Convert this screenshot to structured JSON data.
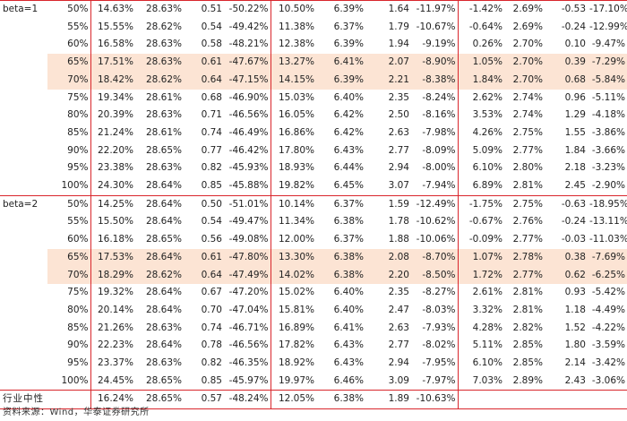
{
  "groups": [
    {
      "label": "beta=1",
      "rows": [
        {
          "q": "50%",
          "c": [
            "14.63%",
            "28.63%",
            "0.51",
            "-50.22%",
            "10.50%",
            "6.39%",
            "1.64",
            "-11.97%",
            "-1.42%",
            "2.69%",
            "-0.53",
            "-17.10%"
          ]
        },
        {
          "q": "55%",
          "c": [
            "15.55%",
            "28.62%",
            "0.54",
            "-49.42%",
            "11.38%",
            "6.37%",
            "1.79",
            "-10.67%",
            "-0.64%",
            "2.69%",
            "-0.24",
            "-12.99%"
          ]
        },
        {
          "q": "60%",
          "c": [
            "16.58%",
            "28.63%",
            "0.58",
            "-48.21%",
            "12.38%",
            "6.39%",
            "1.94",
            "-9.19%",
            "0.26%",
            "2.70%",
            "0.10",
            "-9.47%"
          ]
        },
        {
          "q": "65%",
          "c": [
            "17.51%",
            "28.63%",
            "0.61",
            "-47.67%",
            "13.27%",
            "6.41%",
            "2.07",
            "-8.90%",
            "1.05%",
            "2.70%",
            "0.39",
            "-7.29%"
          ]
        },
        {
          "q": "70%",
          "c": [
            "18.42%",
            "28.62%",
            "0.64",
            "-47.15%",
            "14.15%",
            "6.39%",
            "2.21",
            "-8.38%",
            "1.84%",
            "2.70%",
            "0.68",
            "-5.84%"
          ]
        },
        {
          "q": "75%",
          "c": [
            "19.34%",
            "28.61%",
            "0.68",
            "-46.90%",
            "15.03%",
            "6.40%",
            "2.35",
            "-8.24%",
            "2.62%",
            "2.74%",
            "0.96",
            "-5.11%"
          ]
        },
        {
          "q": "80%",
          "c": [
            "20.39%",
            "28.63%",
            "0.71",
            "-46.56%",
            "16.05%",
            "6.42%",
            "2.50",
            "-8.16%",
            "3.53%",
            "2.74%",
            "1.29",
            "-4.18%"
          ]
        },
        {
          "q": "85%",
          "c": [
            "21.24%",
            "28.61%",
            "0.74",
            "-46.49%",
            "16.86%",
            "6.42%",
            "2.63",
            "-7.98%",
            "4.26%",
            "2.75%",
            "1.55",
            "-3.86%"
          ]
        },
        {
          "q": "90%",
          "c": [
            "22.20%",
            "28.65%",
            "0.77",
            "-46.42%",
            "17.80%",
            "6.43%",
            "2.77",
            "-8.09%",
            "5.09%",
            "2.77%",
            "1.84",
            "-3.66%"
          ]
        },
        {
          "q": "95%",
          "c": [
            "23.38%",
            "28.63%",
            "0.82",
            "-45.93%",
            "18.93%",
            "6.44%",
            "2.94",
            "-8.00%",
            "6.10%",
            "2.80%",
            "2.18",
            "-3.23%"
          ]
        },
        {
          "q": "100%",
          "c": [
            "24.30%",
            "28.64%",
            "0.85",
            "-45.88%",
            "19.82%",
            "6.45%",
            "3.07",
            "-7.94%",
            "6.89%",
            "2.81%",
            "2.45",
            "-2.90%"
          ]
        }
      ]
    },
    {
      "label": "beta=2",
      "rows": [
        {
          "q": "50%",
          "c": [
            "14.25%",
            "28.64%",
            "0.50",
            "-51.01%",
            "10.14%",
            "6.37%",
            "1.59",
            "-12.49%",
            "-1.75%",
            "2.75%",
            "-0.63",
            "-18.95%"
          ]
        },
        {
          "q": "55%",
          "c": [
            "15.50%",
            "28.64%",
            "0.54",
            "-49.47%",
            "11.34%",
            "6.38%",
            "1.78",
            "-10.62%",
            "-0.67%",
            "2.76%",
            "-0.24",
            "-13.11%"
          ]
        },
        {
          "q": "60%",
          "c": [
            "16.18%",
            "28.65%",
            "0.56",
            "-49.08%",
            "12.00%",
            "6.37%",
            "1.88",
            "-10.06%",
            "-0.09%",
            "2.77%",
            "-0.03",
            "-11.03%"
          ]
        },
        {
          "q": "65%",
          "c": [
            "17.53%",
            "28.64%",
            "0.61",
            "-47.80%",
            "13.30%",
            "6.38%",
            "2.08",
            "-8.70%",
            "1.07%",
            "2.78%",
            "0.38",
            "-7.69%"
          ]
        },
        {
          "q": "70%",
          "c": [
            "18.29%",
            "28.62%",
            "0.64",
            "-47.49%",
            "14.02%",
            "6.38%",
            "2.20",
            "-8.50%",
            "1.72%",
            "2.77%",
            "0.62",
            "-6.25%"
          ]
        },
        {
          "q": "75%",
          "c": [
            "19.32%",
            "28.64%",
            "0.67",
            "-47.20%",
            "15.02%",
            "6.40%",
            "2.35",
            "-8.27%",
            "2.61%",
            "2.81%",
            "0.93",
            "-5.42%"
          ]
        },
        {
          "q": "80%",
          "c": [
            "20.14%",
            "28.64%",
            "0.70",
            "-47.04%",
            "15.81%",
            "6.40%",
            "2.47",
            "-8.03%",
            "3.32%",
            "2.81%",
            "1.18",
            "-4.49%"
          ]
        },
        {
          "q": "85%",
          "c": [
            "21.26%",
            "28.63%",
            "0.74",
            "-46.71%",
            "16.89%",
            "6.41%",
            "2.63",
            "-7.93%",
            "4.28%",
            "2.82%",
            "1.52",
            "-4.22%"
          ]
        },
        {
          "q": "90%",
          "c": [
            "22.23%",
            "28.64%",
            "0.78",
            "-46.56%",
            "17.82%",
            "6.43%",
            "2.77",
            "-8.02%",
            "5.11%",
            "2.85%",
            "1.80",
            "-3.59%"
          ]
        },
        {
          "q": "95%",
          "c": [
            "23.37%",
            "28.63%",
            "0.82",
            "-46.35%",
            "18.92%",
            "6.43%",
            "2.94",
            "-7.95%",
            "6.10%",
            "2.85%",
            "2.14",
            "-3.42%"
          ]
        },
        {
          "q": "100%",
          "c": [
            "24.45%",
            "28.65%",
            "0.85",
            "-45.97%",
            "19.97%",
            "6.46%",
            "3.09",
            "-7.97%",
            "7.03%",
            "2.89%",
            "2.43",
            "-3.06%"
          ]
        }
      ]
    }
  ],
  "summary": {
    "label": "行业中性",
    "c": [
      "16.24%",
      "28.65%",
      "0.57",
      "-48.24%",
      "12.05%",
      "6.38%",
      "1.89",
      "-10.63%",
      "",
      "",
      "",
      ""
    ]
  },
  "source": "资料来源：Wind，华泰证券研究所",
  "colors": {
    "border": "#d9262c",
    "highlight": "#fce4d4"
  }
}
